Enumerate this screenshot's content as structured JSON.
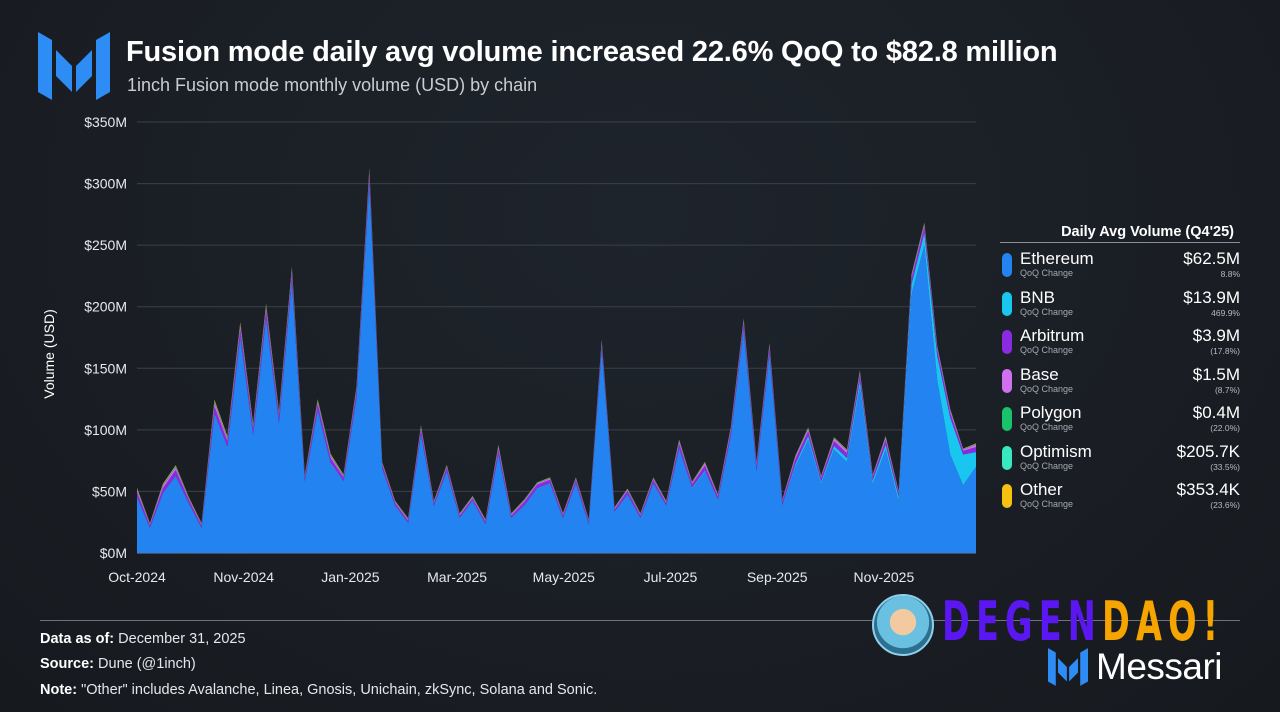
{
  "header": {
    "title": "Fusion mode daily avg volume increased 22.6% QoQ to $82.8 million",
    "subtitle": "1inch Fusion mode monthly volume (USD) by chain",
    "logo": "messari-logo"
  },
  "chart_data": {
    "type": "area",
    "stacked": true,
    "title": "Fusion mode daily avg volume increased 22.6% QoQ to $82.8 million",
    "subtitle": "1inch Fusion mode monthly volume (USD) by chain",
    "ylabel": "Volume (USD)",
    "xlabel": "",
    "ylim": [
      0,
      350
    ],
    "yunit": "$M",
    "yticks": [
      "$0M",
      "$50M",
      "$100M",
      "$150M",
      "$200M",
      "$250M",
      "$300M",
      "$350M"
    ],
    "xticks": [
      "Oct-2024",
      "Nov-2024",
      "Jan-2025",
      "Mar-2025",
      "May-2025",
      "Jul-2025",
      "Sep-2025",
      "Nov-2025"
    ],
    "grid": true,
    "x": [
      "2024-10-01",
      "2024-10-08",
      "2024-10-15",
      "2024-10-22",
      "2024-10-29",
      "2024-11-05",
      "2024-11-12",
      "2024-11-19",
      "2024-11-26",
      "2024-12-03",
      "2024-12-10",
      "2024-12-17",
      "2024-12-24",
      "2024-12-31",
      "2025-01-07",
      "2025-01-14",
      "2025-01-21",
      "2025-01-28",
      "2025-02-04",
      "2025-02-11",
      "2025-02-18",
      "2025-02-25",
      "2025-03-04",
      "2025-03-11",
      "2025-03-18",
      "2025-03-25",
      "2025-04-01",
      "2025-04-08",
      "2025-04-15",
      "2025-04-22",
      "2025-04-29",
      "2025-05-06",
      "2025-05-13",
      "2025-05-20",
      "2025-05-27",
      "2025-06-03",
      "2025-06-10",
      "2025-06-17",
      "2025-06-24",
      "2025-07-01",
      "2025-07-08",
      "2025-07-15",
      "2025-07-22",
      "2025-07-29",
      "2025-08-05",
      "2025-08-12",
      "2025-08-19",
      "2025-08-26",
      "2025-09-02",
      "2025-09-09",
      "2025-09-16",
      "2025-09-23",
      "2025-09-30",
      "2025-10-07",
      "2025-10-14",
      "2025-10-21",
      "2025-10-28",
      "2025-11-04",
      "2025-11-11",
      "2025-11-18",
      "2025-11-25",
      "2025-12-02",
      "2025-12-09",
      "2025-12-16",
      "2025-12-23",
      "2025-12-30"
    ],
    "series": [
      {
        "name": "Ethereum",
        "color": "#2383f0",
        "values": [
          45,
          20,
          48,
          62,
          40,
          20,
          112,
          85,
          175,
          95,
          190,
          105,
          220,
          58,
          115,
          72,
          58,
          125,
          300,
          68,
          38,
          24,
          96,
          38,
          66,
          28,
          42,
          23,
          80,
          28,
          38,
          52,
          56,
          28,
          56,
          23,
          165,
          33,
          47,
          28,
          56,
          38,
          84,
          52,
          66,
          42,
          94,
          180,
          66,
          160,
          38,
          70,
          92,
          56,
          84,
          74,
          135,
          56,
          84,
          42,
          210,
          250,
          140,
          80,
          55,
          70
        ]
      },
      {
        "name": "BNB",
        "color": "#19c6f0",
        "values": [
          0.5,
          0.5,
          0.5,
          0.5,
          0.5,
          0.5,
          1,
          1,
          1,
          1,
          1,
          1,
          1,
          0.5,
          1,
          1,
          0.5,
          1,
          1,
          0.5,
          0.5,
          0.5,
          0.5,
          0.5,
          0.5,
          0.5,
          0.5,
          0.5,
          0.5,
          0.5,
          0.5,
          0.5,
          0.5,
          0.5,
          0.5,
          0.5,
          1,
          0.5,
          0.5,
          0.5,
          0.5,
          0.5,
          1,
          1,
          1,
          1,
          1,
          2,
          1,
          2,
          1,
          2,
          3,
          2,
          3,
          3,
          5,
          3,
          4,
          4,
          8,
          10,
          20,
          30,
          25,
          12
        ]
      },
      {
        "name": "Arbitrum",
        "color": "#8a2be2",
        "values": [
          4,
          2,
          4,
          5,
          3,
          2,
          6,
          5,
          6,
          5,
          6,
          5,
          6,
          3,
          5,
          4,
          3,
          5,
          6,
          3,
          2,
          2,
          4,
          2,
          3,
          2,
          2,
          2,
          4,
          2,
          3,
          3,
          3,
          2,
          3,
          2,
          4,
          2,
          3,
          2,
          3,
          2,
          4,
          3,
          4,
          3,
          4,
          5,
          4,
          5,
          3,
          4,
          4,
          3,
          4,
          4,
          5,
          3,
          4,
          3,
          5,
          5,
          5,
          4,
          3,
          4
        ]
      },
      {
        "name": "Base",
        "color": "#d070f0",
        "values": [
          2,
          1,
          2,
          2,
          1,
          1,
          3,
          2,
          3,
          2,
          3,
          2,
          3,
          1,
          2,
          2,
          1,
          2,
          3,
          1,
          1,
          1,
          2,
          1,
          1,
          1,
          1,
          1,
          2,
          1,
          1,
          1,
          1,
          1,
          1,
          1,
          2,
          1,
          1,
          1,
          1,
          1,
          2,
          1,
          2,
          1,
          2,
          2,
          2,
          2,
          1,
          2,
          2,
          1,
          2,
          2,
          2,
          1,
          2,
          1,
          2,
          2,
          2,
          2,
          1,
          2
        ]
      },
      {
        "name": "Polygon",
        "color": "#18c36a",
        "values": [
          0.5,
          0.3,
          0.5,
          0.6,
          0.4,
          0.3,
          0.8,
          0.7,
          0.8,
          0.7,
          0.8,
          0.7,
          0.8,
          0.4,
          0.6,
          0.5,
          0.4,
          0.6,
          0.8,
          0.4,
          0.3,
          0.3,
          0.5,
          0.3,
          0.4,
          0.3,
          0.3,
          0.3,
          0.5,
          0.3,
          0.4,
          0.4,
          0.4,
          0.3,
          0.4,
          0.3,
          0.5,
          0.3,
          0.4,
          0.3,
          0.4,
          0.3,
          0.5,
          0.4,
          0.4,
          0.3,
          0.4,
          0.5,
          0.4,
          0.5,
          0.3,
          0.4,
          0.4,
          0.3,
          0.4,
          0.4,
          0.5,
          0.3,
          0.4,
          0.3,
          0.5,
          0.5,
          0.5,
          0.4,
          0.3,
          0.4
        ]
      },
      {
        "name": "Optimism",
        "color": "#3ae8c0",
        "values": [
          0.4,
          0.2,
          0.4,
          0.5,
          0.3,
          0.2,
          0.6,
          0.5,
          0.6,
          0.5,
          0.6,
          0.5,
          0.6,
          0.3,
          0.5,
          0.4,
          0.3,
          0.4,
          0.6,
          0.3,
          0.2,
          0.2,
          0.3,
          0.2,
          0.3,
          0.2,
          0.2,
          0.2,
          0.3,
          0.2,
          0.2,
          0.2,
          0.2,
          0.2,
          0.2,
          0.2,
          0.3,
          0.2,
          0.2,
          0.2,
          0.2,
          0.2,
          0.3,
          0.2,
          0.2,
          0.2,
          0.2,
          0.3,
          0.2,
          0.3,
          0.2,
          0.2,
          0.2,
          0.2,
          0.2,
          0.2,
          0.3,
          0.2,
          0.2,
          0.2,
          0.3,
          0.3,
          0.2,
          0.2,
          0.2,
          0.2
        ]
      },
      {
        "name": "Other",
        "color": "#f5c211",
        "values": [
          0.6,
          0.3,
          0.6,
          0.7,
          0.5,
          0.3,
          1,
          0.8,
          1,
          0.8,
          1,
          0.8,
          1,
          0.5,
          0.8,
          0.6,
          0.5,
          0.7,
          1,
          0.5,
          0.3,
          0.3,
          0.5,
          0.3,
          0.4,
          0.3,
          0.3,
          0.3,
          0.5,
          0.3,
          0.3,
          0.3,
          0.3,
          0.3,
          0.3,
          0.3,
          0.4,
          0.3,
          0.3,
          0.3,
          0.3,
          0.3,
          0.4,
          0.3,
          0.4,
          0.3,
          0.4,
          0.5,
          0.4,
          0.5,
          0.3,
          0.4,
          0.4,
          0.3,
          0.4,
          0.4,
          0.5,
          0.3,
          0.4,
          0.3,
          0.5,
          0.5,
          0.4,
          0.4,
          0.3,
          0.4
        ]
      }
    ]
  },
  "legend": {
    "title": "Daily Avg Volume (Q4'25)",
    "items": [
      {
        "name": "Ethereum",
        "sub": "QoQ Change",
        "value": "$62.5M",
        "change": "8.8%",
        "color": "#2383f0"
      },
      {
        "name": "BNB",
        "sub": "QoQ Change",
        "value": "$13.9M",
        "change": "469.9%",
        "color": "#19c6f0"
      },
      {
        "name": "Arbitrum",
        "sub": "QoQ Change",
        "value": "$3.9M",
        "change": "(17.8%)",
        "color": "#8a2be2"
      },
      {
        "name": "Base",
        "sub": "QoQ Change",
        "value": "$1.5M",
        "change": "(8.7%)",
        "color": "#d070f0"
      },
      {
        "name": "Polygon",
        "sub": "QoQ Change",
        "value": "$0.4M",
        "change": "(22.0%)",
        "color": "#18c36a"
      },
      {
        "name": "Optimism",
        "sub": "QoQ Change",
        "value": "$205.7K",
        "change": "(33.5%)",
        "color": "#3ae8c0"
      },
      {
        "name": "Other",
        "sub": "QoQ Change",
        "value": "$353.4K",
        "change": "(23.6%)",
        "color": "#f5c211"
      }
    ]
  },
  "footer": {
    "data_label": "Data as of:",
    "data_value": "December 31, 2025",
    "source_label": "Source:",
    "source_value": "Dune (@1inch)",
    "note_label": "Note:",
    "note_value": "\"Other\" includes Avalanche, Linea, Gnosis, Unichain, zkSync, Solana and Sonic."
  },
  "branding": {
    "degen_part1": "DEGEN",
    "degen_part2": "DAO!",
    "messari": "Messari"
  }
}
